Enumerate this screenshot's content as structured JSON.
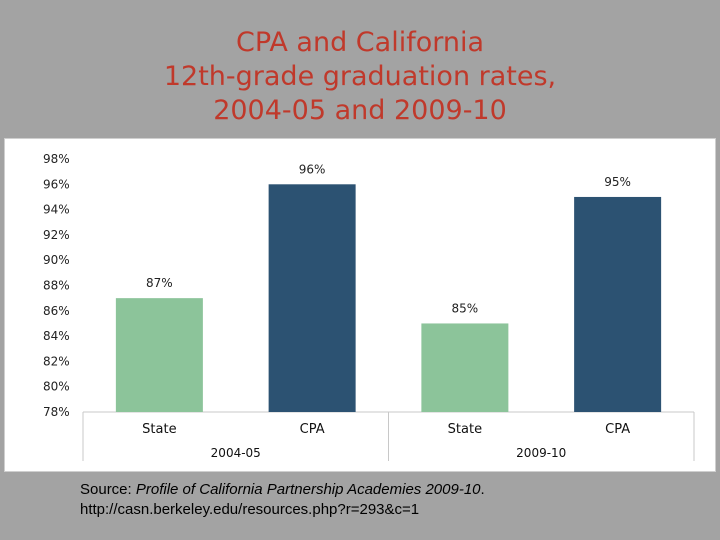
{
  "title_lines": [
    "CPA and California",
    "12th-grade graduation rates,",
    "2004-05 and 2009-10"
  ],
  "source": {
    "prefix": "Source: ",
    "citation": "Profile of California Partnership Academies 2009-10",
    "suffix": ".",
    "url": "http://casn.berkeley.edu/resources.php?r=293&c=1"
  },
  "colors": {
    "title": "#c0392b",
    "state": "#8cc49a",
    "cpa": "#2c5272",
    "background": "#a3a3a3"
  },
  "chart_data": {
    "type": "bar",
    "title": "CPA and California 12th-grade graduation rates, 2004-05 and 2009-10",
    "ylim": [
      78,
      98
    ],
    "yticks": [
      98,
      96,
      94,
      92,
      90,
      88,
      86,
      84,
      82,
      80,
      78
    ],
    "ytick_labels": [
      "98%",
      "96%",
      "94%",
      "92%",
      "90%",
      "88%",
      "86%",
      "84%",
      "82%",
      "80%",
      "78%"
    ],
    "groups": [
      {
        "name": "2004-05",
        "bars": [
          {
            "category": "State",
            "value": 87,
            "label": "87%",
            "color": "#8cc49a"
          },
          {
            "category": "CPA",
            "value": 96,
            "label": "96%",
            "color": "#2c5272"
          }
        ]
      },
      {
        "name": "2009-10",
        "bars": [
          {
            "category": "State",
            "value": 85,
            "label": "85%",
            "color": "#8cc49a"
          },
          {
            "category": "CPA",
            "value": 95,
            "label": "95%",
            "color": "#2c5272"
          }
        ]
      }
    ],
    "grid": false,
    "legend": "none"
  }
}
